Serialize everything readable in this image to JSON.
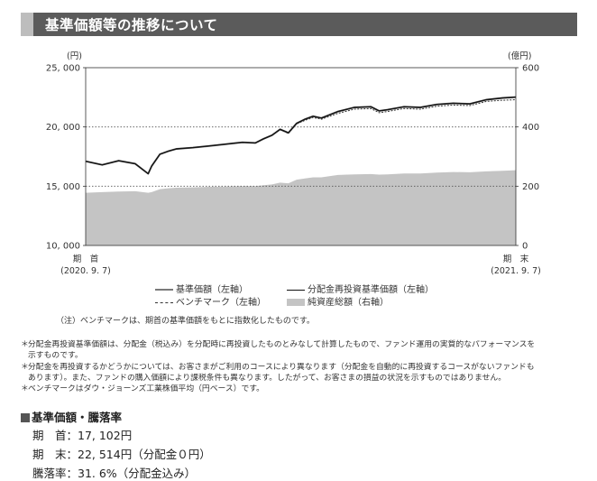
{
  "header": {
    "title": "基準価額等の推移について"
  },
  "chart_data": {
    "type": "line",
    "left_axis_unit": "(円)",
    "right_axis_unit": "(億円)",
    "left_ticks": [
      "25, 000",
      "20, 000",
      "15, 000",
      "10, 000"
    ],
    "right_ticks": [
      "600",
      "400",
      "200",
      "0"
    ],
    "ylim_left": [
      10000,
      25000
    ],
    "ylim_right": [
      0,
      600
    ],
    "x_start_label": "期　首",
    "x_start_date": "(2020. 9. 7)",
    "x_end_label": "期　末",
    "x_end_date": "(2021. 9. 7)",
    "x_start": "2020-09-07",
    "x_end": "2021-09-07",
    "x": [
      "2020-09-07",
      "2020-09-21",
      "2020-10-05",
      "2020-10-19",
      "2020-10-30",
      "2020-11-02",
      "2020-11-09",
      "2020-11-16",
      "2020-11-23",
      "2020-12-07",
      "2020-12-21",
      "2021-01-04",
      "2021-01-18",
      "2021-01-29",
      "2021-02-05",
      "2021-02-12",
      "2021-02-19",
      "2021-02-26",
      "2021-03-05",
      "2021-03-12",
      "2021-03-19",
      "2021-03-26",
      "2021-04-09",
      "2021-04-23",
      "2021-05-07",
      "2021-05-14",
      "2021-05-21",
      "2021-06-04",
      "2021-06-18",
      "2021-07-02",
      "2021-07-16",
      "2021-07-30",
      "2021-08-13",
      "2021-08-27",
      "2021-09-07"
    ],
    "series": [
      {
        "name": "基準価額（左軸）",
        "color": "#7a7a7a",
        "axis": "left",
        "values": [
          17102,
          16800,
          17150,
          16900,
          16050,
          16700,
          17700,
          17950,
          18150,
          18250,
          18400,
          18550,
          18700,
          18650,
          19000,
          19300,
          19800,
          19500,
          20300,
          20650,
          20900,
          20750,
          21300,
          21650,
          21700,
          21350,
          21450,
          21700,
          21650,
          21900,
          22000,
          21950,
          22300,
          22450,
          22514
        ]
      },
      {
        "name": "分配金再投資基準価額（左軸）",
        "color": "#111111",
        "axis": "left",
        "values": [
          17102,
          16800,
          17150,
          16900,
          16050,
          16700,
          17700,
          17950,
          18150,
          18250,
          18400,
          18550,
          18700,
          18650,
          19000,
          19300,
          19800,
          19500,
          20300,
          20650,
          20900,
          20750,
          21300,
          21650,
          21700,
          21350,
          21450,
          21700,
          21650,
          21900,
          22000,
          21950,
          22300,
          22450,
          22514
        ]
      },
      {
        "name": "ベンチマーク（左軸）",
        "color": "#333333",
        "axis": "left",
        "dashed": true,
        "values": [
          17102,
          16800,
          17150,
          16900,
          16050,
          16700,
          17700,
          17950,
          18150,
          18250,
          18400,
          18550,
          18700,
          18650,
          19000,
          19300,
          19750,
          19450,
          20250,
          20550,
          20800,
          20650,
          21150,
          21500,
          21550,
          21200,
          21300,
          21550,
          21500,
          21750,
          21850,
          21800,
          22150,
          22250,
          22300
        ]
      },
      {
        "name": "純資産総額（右軸）",
        "color": "#c4c4c4",
        "axis": "right",
        "area": true,
        "values": [
          178,
          180,
          182,
          183,
          178,
          180,
          190,
          193,
          195,
          196,
          198,
          199,
          200,
          200,
          203,
          206,
          212,
          210,
          222,
          226,
          230,
          230,
          238,
          240,
          241,
          239,
          240,
          243,
          243,
          246,
          248,
          247,
          250,
          252,
          254
        ]
      }
    ]
  },
  "legend": [
    {
      "label": "基準価額（左軸）",
      "swatch": "gray-line"
    },
    {
      "label": "分配金再投資基準価額（左軸）",
      "swatch": "black-line"
    },
    {
      "label": "ベンチマーク（左軸）",
      "swatch": "dashed-line"
    },
    {
      "label": "純資産総額（右軸）",
      "swatch": "gray-area"
    }
  ],
  "note": "（注）ベンチマークは、期首の基準価額をもとに指数化したものです。",
  "footnotes": [
    "分配金再投資基準価額は、分配金（税込み）を分配時に再投資したものとみなして計算したもので、ファンド運用の実質的なパフォーマンスを",
    "示すものです。",
    "分配金を再投資するかどうかについては、お客さまがご利用のコースにより異なります（分配金を自動的に再投資するコースがないファンドも",
    "あります）。また、ファンドの購入価額により課税条件も異なります。したがって、お客さまの損益の状況を示すものではありません。",
    "ベンチマークはダウ・ジョーンズ工業株価平均（円ベース）です。"
  ],
  "footnote_marks": [
    "＊",
    "",
    "＊",
    "",
    "＊"
  ],
  "results": {
    "title": "基準価額・騰落率",
    "start": "期　首：17, 102円",
    "end": "期　末：22, 514円（分配金０円）",
    "change": "騰落率：31. 6%（分配金込み）"
  }
}
